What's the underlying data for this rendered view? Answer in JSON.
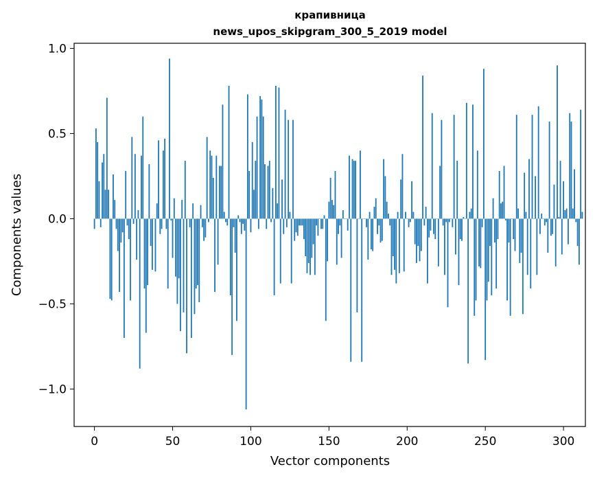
{
  "chart_data": {
    "type": "bar",
    "title": "крапивница",
    "subtitle": "news_upos_skipgram_300_5_2019 model",
    "xlabel": "Vector components",
    "ylabel": "Components values",
    "xlim": [
      -13,
      314
    ],
    "ylim": [
      -1.22,
      1.03
    ],
    "x_ticks": [
      0,
      50,
      100,
      150,
      200,
      250,
      300
    ],
    "y_ticks": [
      -1.0,
      -0.5,
      0.0,
      0.5,
      1.0
    ],
    "y_tick_labels": [
      "−1.0",
      "−0.5",
      "0.0",
      "0.5",
      "1.0"
    ],
    "grid": false,
    "legend": "none",
    "bar_color": "#1f77b4",
    "series": [
      {
        "values": [
          -0.06,
          0.53,
          0.45,
          0.22,
          -0.05,
          0.33,
          0.38,
          0.17,
          0.71,
          0.17,
          -0.47,
          -0.48,
          0.26,
          0.11,
          -0.06,
          -0.19,
          -0.43,
          -0.14,
          -0.08,
          -0.7,
          0.28,
          -0.04,
          -0.12,
          -0.48,
          0.48,
          -0.03,
          0.38,
          -0.24,
          0.05,
          -0.88,
          0.37,
          0.6,
          -0.41,
          -0.67,
          -0.39,
          0.32,
          -0.16,
          -0.3,
          0.0,
          -0.31,
          0.09,
          0.46,
          -0.09,
          -0.06,
          0.4,
          0.47,
          -0.06,
          -0.41,
          0.94,
          -0.01,
          -0.23,
          0.12,
          -0.34,
          -0.5,
          -0.35,
          -0.66,
          0.11,
          -0.55,
          0.34,
          -0.79,
          0.0,
          -0.05,
          -0.7,
          0.09,
          -0.56,
          -0.41,
          -0.39,
          -0.49,
          0.08,
          -0.05,
          -0.13,
          -0.11,
          0.48,
          -0.02,
          0.4,
          0.37,
          0.24,
          -0.43,
          0.37,
          -0.27,
          0.31,
          0.31,
          0.67,
          0.04,
          -0.02,
          -0.04,
          0.78,
          -0.45,
          -0.8,
          -0.05,
          -0.2,
          -0.6,
          0.02,
          -0.02,
          -0.09,
          -0.03,
          -0.07,
          -1.12,
          0.73,
          0.28,
          -0.08,
          0.45,
          0.17,
          0.34,
          0.6,
          -0.06,
          0.72,
          0.7,
          0.6,
          0.32,
          -0.06,
          0.31,
          0.34,
          -0.02,
          0.18,
          -0.45,
          0.78,
          0.09,
          0.77,
          -0.38,
          0.23,
          -0.09,
          0.64,
          -0.05,
          0.58,
          0.04,
          -0.38,
          0.58,
          -0.13,
          -0.08,
          -0.1,
          -0.04,
          -0.04,
          -0.04,
          -0.12,
          -0.22,
          -0.32,
          -0.26,
          -0.33,
          -0.23,
          -0.15,
          -0.33,
          -0.04,
          -0.1,
          0.0,
          -0.06,
          -0.06,
          0.02,
          -0.6,
          -0.25,
          0.1,
          0.24,
          0.11,
          0.08,
          0.28,
          -0.27,
          -0.09,
          -0.04,
          -0.23,
          0.05,
          0.0,
          0.0,
          -0.07,
          0.37,
          -0.84,
          0.35,
          0.34,
          0.34,
          -0.55,
          0.0,
          0.4,
          -0.84,
          0.0,
          0.0,
          -0.05,
          -0.24,
          0.04,
          -0.18,
          -0.19,
          0.07,
          0.12,
          -0.09,
          -0.04,
          -0.14,
          -0.13,
          0.35,
          0.25,
          0.1,
          0.03,
          -0.04,
          -0.33,
          -0.22,
          -0.3,
          -0.38,
          0.04,
          -0.32,
          0.23,
          0.38,
          -0.31,
          0.04,
          0.0,
          -0.05,
          -0.02,
          0.22,
          0.04,
          -0.15,
          -0.26,
          -0.16,
          -0.25,
          -0.19,
          0.84,
          -0.04,
          0.07,
          -0.38,
          -0.11,
          -0.07,
          0.62,
          -0.09,
          -0.12,
          0.0,
          -0.28,
          0.31,
          0.58,
          -0.04,
          -0.33,
          -0.02,
          -0.52,
          -0.02,
          0.0,
          -0.05,
          0.61,
          -0.21,
          0.34,
          -0.39,
          -0.12,
          -0.13,
          0.01,
          0.0,
          0.68,
          -0.85,
          0.04,
          0.06,
          0.67,
          -0.57,
          -0.48,
          0.4,
          -0.28,
          -0.29,
          -0.05,
          0.88,
          -0.83,
          -0.48,
          -0.37,
          -0.16,
          -0.45,
          0.12,
          -0.14,
          -0.41,
          -0.12,
          0.28,
          0.09,
          0.1,
          0.31,
          -0.01,
          -0.48,
          -0.14,
          -0.57,
          0.0,
          -0.12,
          -0.19,
          0.61,
          0.06,
          -0.26,
          -0.2,
          -0.56,
          0.27,
          0.04,
          -0.33,
          0.35,
          -0.41,
          0.61,
          0.0,
          0.25,
          -0.33,
          0.66,
          -0.09,
          0.03,
          0.0,
          -0.04,
          -0.02,
          -0.2,
          0.57,
          -0.1,
          -0.09,
          0.2,
          -0.28,
          0.9,
          0.01,
          0.34,
          -0.21,
          0.22,
          0.05,
          0.06,
          -0.15,
          0.62,
          0.57,
          0.06,
          0.29,
          -0.02,
          -0.16,
          -0.27,
          0.64,
          0.04
        ]
      }
    ]
  }
}
